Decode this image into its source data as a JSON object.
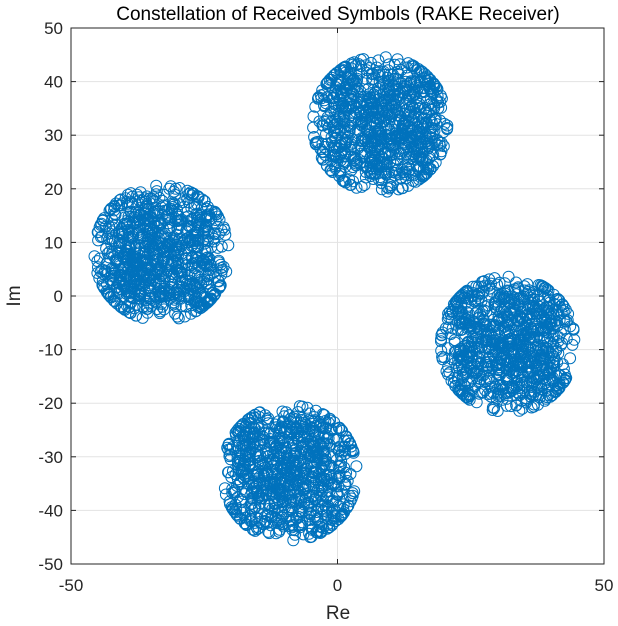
{
  "chart_data": {
    "type": "scatter",
    "title": "Constellation of Received Symbols (RAKE Receiver)",
    "xlabel": "Re",
    "ylabel": "Im",
    "xlim": [
      -50,
      50
    ],
    "ylim": [
      -50,
      50
    ],
    "xticks": [
      -50,
      0,
      50
    ],
    "yticks": [
      -50,
      -40,
      -30,
      -20,
      -10,
      0,
      10,
      20,
      30,
      40,
      50
    ],
    "grid": true,
    "marker": "circle-open",
    "series_color": "#0072BD",
    "clusters": [
      {
        "center": [
          8,
          32
        ],
        "spread": 12
      },
      {
        "center": [
          -33,
          8
        ],
        "spread": 12
      },
      {
        "center": [
          32,
          -9
        ],
        "spread": 12
      },
      {
        "center": [
          -9,
          -33
        ],
        "spread": 12
      }
    ]
  }
}
